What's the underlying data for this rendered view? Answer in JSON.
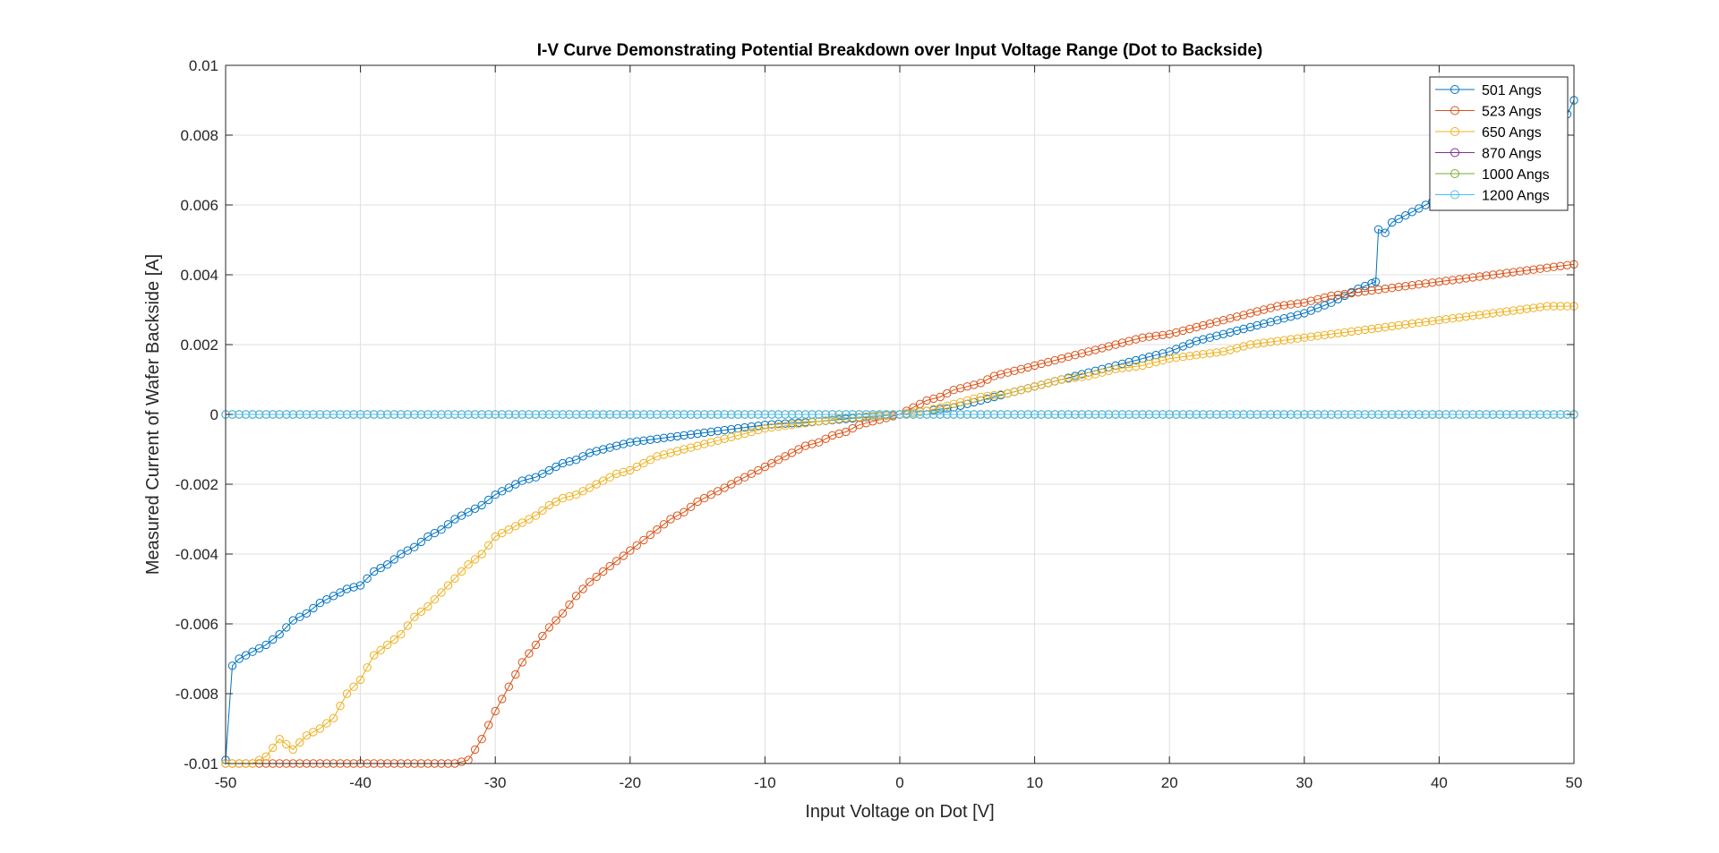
{
  "chart_data": {
    "type": "line",
    "title": "I-V Curve Demonstrating Potential Breakdown over Input Voltage Range (Dot to Backside)",
    "xlabel": "Input Voltage on Dot [V]",
    "ylabel": "Measured Current of Wafer Backside [A]",
    "xlim": [
      -50,
      50
    ],
    "ylim": [
      -0.01,
      0.01
    ],
    "xticks": [
      -50,
      -40,
      -30,
      -20,
      -10,
      0,
      10,
      20,
      30,
      40,
      50
    ],
    "yticks": [
      -0.01,
      -0.008,
      -0.006,
      -0.004,
      -0.002,
      0,
      0.002,
      0.004,
      0.006,
      0.008,
      0.01
    ],
    "xtick_labels": [
      "-50",
      "-40",
      "-30",
      "-20",
      "-10",
      "0",
      "10",
      "20",
      "30",
      "40",
      "50"
    ],
    "ytick_labels": [
      "-0.01",
      "-0.008",
      "-0.006",
      "-0.004",
      "-0.002",
      "0",
      "0.002",
      "0.004",
      "0.006",
      "0.008",
      "0.01"
    ],
    "grid": true,
    "legend_position": "top-right",
    "marker": "circle-open",
    "series": [
      {
        "name": "501 Angs",
        "color": "#0072BD",
        "points": [
          [
            -50,
            -0.0099
          ],
          [
            -49.5,
            -0.0072
          ],
          [
            -49,
            -0.007
          ],
          [
            -48,
            -0.0068
          ],
          [
            -47,
            -0.0066
          ],
          [
            -46,
            -0.0063
          ],
          [
            -45,
            -0.0059
          ],
          [
            -44,
            -0.0057
          ],
          [
            -43,
            -0.0054
          ],
          [
            -42,
            -0.0052
          ],
          [
            -41,
            -0.005
          ],
          [
            -40,
            -0.0049
          ],
          [
            -39,
            -0.0045
          ],
          [
            -38,
            -0.0043
          ],
          [
            -37,
            -0.004
          ],
          [
            -36,
            -0.0038
          ],
          [
            -35,
            -0.0035
          ],
          [
            -34,
            -0.0033
          ],
          [
            -33,
            -0.003
          ],
          [
            -32,
            -0.0028
          ],
          [
            -31,
            -0.0026
          ],
          [
            -30,
            -0.0023
          ],
          [
            -29,
            -0.0021
          ],
          [
            -28,
            -0.0019
          ],
          [
            -27,
            -0.0018
          ],
          [
            -26,
            -0.0016
          ],
          [
            -25,
            -0.0014
          ],
          [
            -24,
            -0.0013
          ],
          [
            -23,
            -0.0011
          ],
          [
            -22,
            -0.001
          ],
          [
            -21,
            -0.0009
          ],
          [
            -20,
            -0.0008
          ],
          [
            -18,
            -0.0007
          ],
          [
            -16,
            -0.0006
          ],
          [
            -14,
            -0.0005
          ],
          [
            -12,
            -0.0004
          ],
          [
            -10,
            -0.0003
          ],
          [
            -8,
            -0.00025
          ],
          [
            -6,
            -0.0002
          ],
          [
            -4,
            -0.00013
          ],
          [
            -2,
            -6e-05
          ],
          [
            0,
            0
          ],
          [
            2,
            0.0001
          ],
          [
            4,
            0.0002
          ],
          [
            6,
            0.0004
          ],
          [
            8,
            0.0006
          ],
          [
            10,
            0.0008
          ],
          [
            12,
            0.001
          ],
          [
            14,
            0.0012
          ],
          [
            16,
            0.0014
          ],
          [
            18,
            0.0016
          ],
          [
            20,
            0.0018
          ],
          [
            22,
            0.0021
          ],
          [
            24,
            0.0023
          ],
          [
            26,
            0.0025
          ],
          [
            28,
            0.0027
          ],
          [
            30,
            0.0029
          ],
          [
            32,
            0.0032
          ],
          [
            34,
            0.0036
          ],
          [
            35.3,
            0.0038
          ],
          [
            35.5,
            0.0053
          ],
          [
            36,
            0.0052
          ],
          [
            36.5,
            0.0055
          ],
          [
            37,
            0.0056
          ],
          [
            38,
            0.0058
          ],
          [
            39,
            0.006
          ],
          [
            40,
            0.0062
          ],
          [
            41,
            0.0065
          ],
          [
            42,
            0.0067
          ],
          [
            43,
            0.007
          ],
          [
            44,
            0.0072
          ],
          [
            45,
            0.0074
          ],
          [
            46,
            0.0076
          ],
          [
            47,
            0.0079
          ],
          [
            48,
            0.0081
          ],
          [
            49,
            0.0084
          ],
          [
            49.5,
            0.0086
          ],
          [
            50,
            0.009
          ]
        ]
      },
      {
        "name": "523 Angs",
        "color": "#D95319",
        "points": [
          [
            -50,
            -0.01
          ],
          [
            -45,
            -0.01
          ],
          [
            -40,
            -0.01
          ],
          [
            -35,
            -0.01
          ],
          [
            -33,
            -0.01
          ],
          [
            -32,
            -0.0099
          ],
          [
            -31,
            -0.0093
          ],
          [
            -30,
            -0.0085
          ],
          [
            -29,
            -0.0078
          ],
          [
            -28,
            -0.0071
          ],
          [
            -27,
            -0.0066
          ],
          [
            -26,
            -0.0061
          ],
          [
            -25,
            -0.0057
          ],
          [
            -24,
            -0.0052
          ],
          [
            -23,
            -0.0048
          ],
          [
            -22,
            -0.0045
          ],
          [
            -21,
            -0.0042
          ],
          [
            -20,
            -0.0039
          ],
          [
            -19,
            -0.0036
          ],
          [
            -18,
            -0.0033
          ],
          [
            -17,
            -0.003
          ],
          [
            -16,
            -0.0028
          ],
          [
            -15,
            -0.0025
          ],
          [
            -14,
            -0.0023
          ],
          [
            -13,
            -0.0021
          ],
          [
            -12,
            -0.0019
          ],
          [
            -11,
            -0.0017
          ],
          [
            -10,
            -0.0015
          ],
          [
            -9,
            -0.0013
          ],
          [
            -8,
            -0.0011
          ],
          [
            -7,
            -0.0009
          ],
          [
            -6,
            -0.0008
          ],
          [
            -5,
            -0.0006
          ],
          [
            -4,
            -0.0005
          ],
          [
            -3,
            -0.0003
          ],
          [
            -2,
            -0.0002
          ],
          [
            -1,
            -0.0001
          ],
          [
            0,
            0
          ],
          [
            1,
            0.0002
          ],
          [
            2,
            0.0004
          ],
          [
            3,
            0.0005
          ],
          [
            4,
            0.0007
          ],
          [
            5,
            0.0008
          ],
          [
            6,
            0.0009
          ],
          [
            7,
            0.0011
          ],
          [
            8,
            0.0012
          ],
          [
            9,
            0.0013
          ],
          [
            10,
            0.0014
          ],
          [
            12,
            0.0016
          ],
          [
            14,
            0.0018
          ],
          [
            16,
            0.002
          ],
          [
            18,
            0.0022
          ],
          [
            20,
            0.0023
          ],
          [
            22,
            0.0025
          ],
          [
            24,
            0.0027
          ],
          [
            26,
            0.0029
          ],
          [
            28,
            0.0031
          ],
          [
            30,
            0.0032
          ],
          [
            32,
            0.0034
          ],
          [
            34,
            0.0035
          ],
          [
            36,
            0.0036
          ],
          [
            38,
            0.0037
          ],
          [
            40,
            0.0038
          ],
          [
            42,
            0.0039
          ],
          [
            44,
            0.004
          ],
          [
            46,
            0.0041
          ],
          [
            48,
            0.0042
          ],
          [
            50,
            0.0043
          ]
        ]
      },
      {
        "name": "650 Angs",
        "color": "#EDB120",
        "points": [
          [
            -50,
            -0.01
          ],
          [
            -48,
            -0.01
          ],
          [
            -47,
            -0.0098
          ],
          [
            -46,
            -0.0093
          ],
          [
            -45,
            -0.0096
          ],
          [
            -44,
            -0.0092
          ],
          [
            -43,
            -0.009
          ],
          [
            -42,
            -0.0087
          ],
          [
            -41,
            -0.008
          ],
          [
            -40,
            -0.0076
          ],
          [
            -39,
            -0.0069
          ],
          [
            -38,
            -0.0066
          ],
          [
            -37,
            -0.0063
          ],
          [
            -36,
            -0.0058
          ],
          [
            -35,
            -0.0055
          ],
          [
            -34,
            -0.0051
          ],
          [
            -33,
            -0.0047
          ],
          [
            -32,
            -0.0043
          ],
          [
            -31,
            -0.004
          ],
          [
            -30,
            -0.0035
          ],
          [
            -29,
            -0.0033
          ],
          [
            -28,
            -0.0031
          ],
          [
            -27,
            -0.0029
          ],
          [
            -26,
            -0.0026
          ],
          [
            -25,
            -0.0024
          ],
          [
            -24,
            -0.0023
          ],
          [
            -23,
            -0.0021
          ],
          [
            -22,
            -0.0019
          ],
          [
            -21,
            -0.0017
          ],
          [
            -20,
            -0.0016
          ],
          [
            -19,
            -0.0014
          ],
          [
            -18,
            -0.0012
          ],
          [
            -17,
            -0.0011
          ],
          [
            -16,
            -0.001
          ],
          [
            -15,
            -0.0009
          ],
          [
            -14,
            -0.0008
          ],
          [
            -13,
            -0.0007
          ],
          [
            -12,
            -0.0006
          ],
          [
            -11,
            -0.0005
          ],
          [
            -10,
            -0.0004
          ],
          [
            -8,
            -0.0003
          ],
          [
            -6,
            -0.0002
          ],
          [
            -4,
            -0.0001
          ],
          [
            -2,
            -5e-05
          ],
          [
            0,
            0
          ],
          [
            2,
            0.0001
          ],
          [
            4,
            0.0003
          ],
          [
            6,
            0.0005
          ],
          [
            8,
            0.0006
          ],
          [
            10,
            0.0008
          ],
          [
            12,
            0.001
          ],
          [
            14,
            0.0011
          ],
          [
            16,
            0.0013
          ],
          [
            18,
            0.0014
          ],
          [
            20,
            0.0016
          ],
          [
            22,
            0.0017
          ],
          [
            24,
            0.0018
          ],
          [
            26,
            0.002
          ],
          [
            28,
            0.0021
          ],
          [
            30,
            0.0022
          ],
          [
            32,
            0.0023
          ],
          [
            34,
            0.0024
          ],
          [
            36,
            0.0025
          ],
          [
            38,
            0.0026
          ],
          [
            40,
            0.0027
          ],
          [
            42,
            0.0028
          ],
          [
            44,
            0.0029
          ],
          [
            46,
            0.003
          ],
          [
            48,
            0.0031
          ],
          [
            50,
            0.0031
          ]
        ]
      },
      {
        "name": "870 Angs",
        "color": "#7E2F8E",
        "points": [
          [
            -50,
            0
          ],
          [
            0,
            0
          ],
          [
            50,
            0
          ]
        ]
      },
      {
        "name": "1000 Angs",
        "color": "#77AC30",
        "points": [
          [
            -50,
            0
          ],
          [
            0,
            0
          ],
          [
            50,
            0
          ]
        ]
      },
      {
        "name": "1200 Angs",
        "color": "#4DBEEE",
        "points": [
          [
            -50,
            0
          ],
          [
            0,
            0
          ],
          [
            50,
            0
          ]
        ]
      }
    ]
  }
}
